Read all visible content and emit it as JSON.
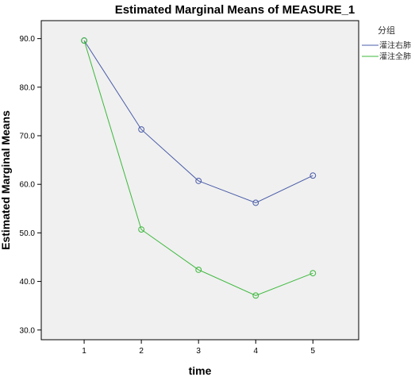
{
  "chart_data": {
    "type": "line",
    "title": "Estimated Marginal Means of MEASURE_1",
    "xlabel": "time",
    "ylabel": "Estimated Marginal Means",
    "categories": [
      "1",
      "2",
      "3",
      "4",
      "5"
    ],
    "yticks": [
      "30.0",
      "40.0",
      "50.0",
      "60.0",
      "70.0",
      "80.0",
      "90.0"
    ],
    "ylim": [
      28.0,
      93.7
    ],
    "grid": false,
    "legend": {
      "title": "分组",
      "position": "right"
    },
    "series": [
      {
        "name": "灌注右肺",
        "color": "#4a5ca8",
        "values": [
          89.6,
          71.3,
          60.7,
          56.2,
          61.8
        ]
      },
      {
        "name": "灌注全肺",
        "color": "#3bb83b",
        "values": [
          89.6,
          50.7,
          42.4,
          37.1,
          41.7
        ]
      }
    ]
  }
}
